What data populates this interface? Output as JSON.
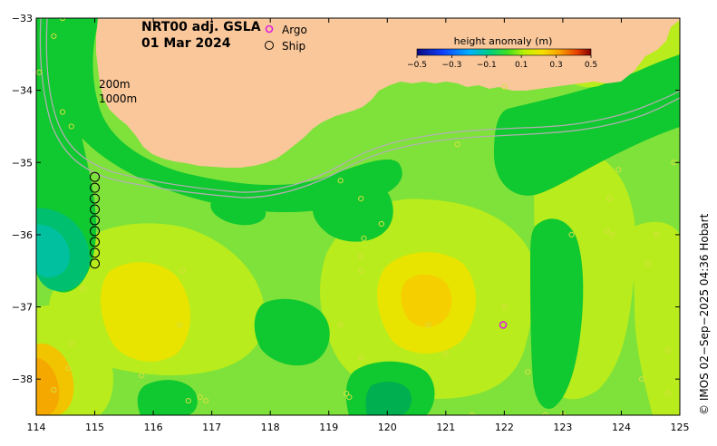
{
  "title": {
    "line1": "NRT00 adj. GSLA",
    "line2": "01 Mar 2024"
  },
  "legend": {
    "items": [
      {
        "label": "Argo",
        "color": "#e020e0"
      },
      {
        "label": "Ship",
        "color": "#000000"
      }
    ]
  },
  "colorbar": {
    "title": "height anomaly (m)",
    "ticks": [
      "−0.5",
      "−0.3",
      "−0.1",
      "0.1",
      "0.3",
      "0.5"
    ],
    "range": [
      -0.5,
      0.5
    ]
  },
  "contour_labels": {
    "shallow": "200m",
    "deep": "1000m"
  },
  "credit": "© IMOS 02−Sep−2025 04:36 Hobart",
  "axes": {
    "x_ticks": [
      "114",
      "115",
      "116",
      "117",
      "118",
      "119",
      "120",
      "121",
      "122",
      "123",
      "124",
      "125"
    ],
    "y_ticks": [
      "−33",
      "−34",
      "−35",
      "−36",
      "−37",
      "−38"
    ],
    "xlim": [
      114,
      125
    ],
    "ylim": [
      -38.5,
      -33
    ]
  },
  "colors": {
    "land": "#f9c79a",
    "bathymetry": "#b0b0b0",
    "argo": "#e020e0"
  }
}
